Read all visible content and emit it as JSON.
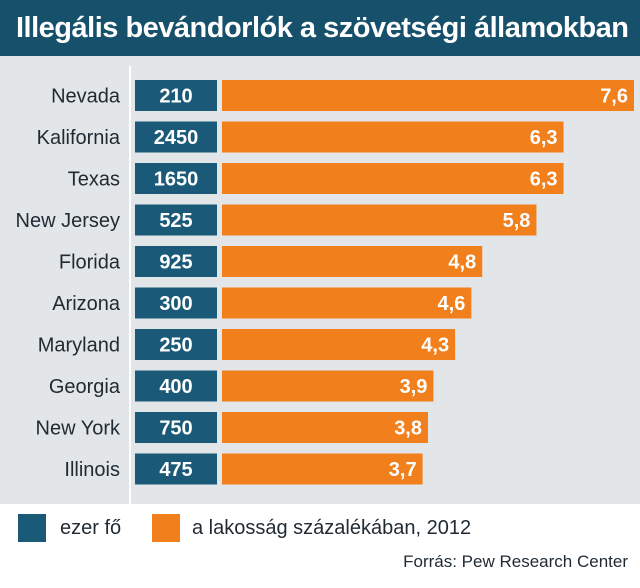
{
  "title": "Illegális bevándorlók a szövetségi államokban",
  "colors": {
    "title_bg": "#17506b",
    "count_box": "#1a5a78",
    "percent_bar": "#f07f1c",
    "background": "#e3e6e8"
  },
  "legend": {
    "count_label": "ezer fő",
    "percent_label": "a lakosság százalékában, 2012"
  },
  "source": "Forrás: Pew Research Center",
  "chart_data": {
    "type": "bar",
    "orientation": "horizontal",
    "title": "Illegális bevándorlók a szövetségi államokban",
    "categories": [
      "Nevada",
      "Kalifornia",
      "Texas",
      "New Jersey",
      "Florida",
      "Arizona",
      "Maryland",
      "Georgia",
      "New York",
      "Illinois"
    ],
    "series": [
      {
        "name": "ezer fő",
        "values": [
          210,
          2450,
          1650,
          525,
          925,
          300,
          250,
          400,
          750,
          475
        ],
        "labels": [
          "210",
          "2450",
          "1650",
          "525",
          "925",
          "300",
          "250",
          "400",
          "750",
          "475"
        ]
      },
      {
        "name": "a lakosság százalékában, 2012",
        "values": [
          7.6,
          6.3,
          6.3,
          5.8,
          4.8,
          4.6,
          4.3,
          3.9,
          3.8,
          3.7
        ],
        "labels": [
          "7,6",
          "6,3",
          "6,3",
          "5,8",
          "4,8",
          "4,6",
          "4,3",
          "3,9",
          "3,8",
          "3,7"
        ]
      }
    ],
    "xlim": [
      0,
      7.6
    ],
    "grid": false,
    "legend_position": "bottom"
  }
}
